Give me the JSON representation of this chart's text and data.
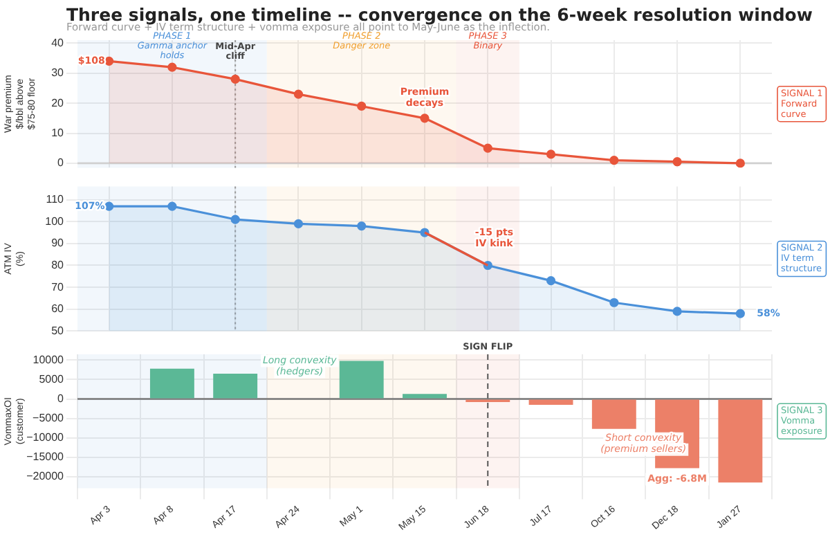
{
  "chart_data": [
    {
      "type": "area",
      "title": "Three signals, one timeline -- convergence on the 6-week resolution window",
      "subtitle": "Forward curve + IV term structure + vomma exposure all point to May-June as the inflection.",
      "ylabel": "War premium\n$/bbl above\n$75-80 floor",
      "categories": [
        "Apr 3",
        "Apr 8",
        "Apr 17",
        "Apr 24",
        "May 1",
        "May 15",
        "Jun 18",
        "Jul 17",
        "Oct 16",
        "Dec 18",
        "Jan 27"
      ],
      "series": [
        {
          "color": "#e8553a",
          "values": [
            34,
            32,
            28,
            23,
            19,
            15,
            5,
            3,
            1,
            0.5,
            0
          ]
        }
      ],
      "ylim": [
        -1.5,
        41
      ],
      "yticks": [
        0,
        10,
        20,
        30,
        40
      ],
      "grid": true,
      "tick_labels": "y",
      "marker": "circle",
      "bands": [
        {
          "axis": "x",
          "from": "Apr 3",
          "to": "Apr 17",
          "label": "PHASE 1\nGamma anchor\nholds",
          "color": "#4a90d9"
        },
        {
          "axis": "x",
          "from": "Apr 24",
          "to": "May 15",
          "label": "PHASE 2\nDanger zone",
          "color": "#f0a030"
        },
        {
          "axis": "x",
          "from": "Jun 18",
          "to": "Jun 18",
          "label": "PHASE 3\nBinary",
          "color": "#e8553a"
        }
      ],
      "ref_lines": [
        {
          "axis": "x",
          "value": "Apr 17",
          "label": "Mid-Apr\ncliff",
          "line_style": "dotted",
          "color": "#999999"
        },
        {
          "axis": "y",
          "value": 0,
          "color": "#d0d0d0"
        }
      ],
      "annotations": [
        {
          "text": "$108",
          "x": "Apr 3",
          "y": 34
        },
        "Premium\ndecays",
        "SIGNAL 1\nForward\ncurve"
      ]
    },
    {
      "type": "area",
      "ylabel": "ATM IV\n(%)",
      "categories": [
        "Apr 3",
        "Apr 8",
        "Apr 17",
        "Apr 24",
        "May 1",
        "May 15",
        "Jun 18",
        "Jul 17",
        "Oct 16",
        "Dec 18",
        "Jan 27"
      ],
      "series": [
        {
          "color": "#4a90d9",
          "values": [
            107,
            107,
            101,
            99,
            98,
            95,
            80,
            73,
            63,
            59,
            58
          ]
        },
        {
          "type": "line",
          "marker": "none",
          "color": "#e8553a",
          "values": [
            null,
            null,
            null,
            null,
            null,
            95,
            80,
            null,
            null,
            null,
            null
          ]
        }
      ],
      "ylim": [
        50,
        116
      ],
      "yticks": [
        50,
        60,
        70,
        80,
        90,
        100,
        110
      ],
      "grid": true,
      "tick_labels": "y",
      "marker": "circle",
      "bands": [
        {
          "axis": "x",
          "from": "Apr 3",
          "to": "Apr 17",
          "color": "#4a90d9"
        },
        {
          "axis": "x",
          "from": "Apr 24",
          "to": "May 15",
          "color": "#f0a030"
        },
        {
          "axis": "x",
          "from": "Jun 18",
          "to": "Jun 18",
          "color": "#e8553a"
        }
      ],
      "ref_lines": [
        {
          "axis": "x",
          "value": "Apr 17",
          "line_style": "dotted",
          "color": "#999999"
        }
      ],
      "annotations": [
        {
          "text": "107%",
          "x": "Apr 3",
          "y": 107
        },
        "-15 pts\nIV kink",
        {
          "text": "58%",
          "x": "Jan 27",
          "y": 58
        },
        "SIGNAL 2\nIV term\nstructure"
      ]
    },
    {
      "type": "bar",
      "ylabel": "VommaxOI\n(customer)",
      "categories": [
        "Apr 3",
        "Apr 8",
        "Apr 17",
        "Apr 24",
        "May 1",
        "May 15",
        "Jun 18",
        "Jul 17",
        "Oct 16",
        "Dec 18",
        "Jan 27"
      ],
      "values": [
        null,
        7800,
        6500,
        null,
        9800,
        1300,
        -800,
        -1500,
        -7700,
        -17800,
        -21500
      ],
      "colors": [
        "#5bb896",
        "#5bb896",
        "#5bb896",
        "#5bb896",
        "#5bb896",
        "#5bb896",
        "#ec8068",
        "#ec8068",
        "#ec8068",
        "#ec8068",
        "#ec8068"
      ],
      "ylim": [
        -23000,
        11500
      ],
      "yticks": [
        -20000,
        -15000,
        -10000,
        -5000,
        0,
        5000,
        10000
      ],
      "grid": true,
      "bands": [
        {
          "axis": "x",
          "from": "Apr 3",
          "to": "Apr 17",
          "color": "#4a90d9"
        },
        {
          "axis": "x",
          "from": "Apr 24",
          "to": "May 15",
          "color": "#f0a030"
        },
        {
          "axis": "x",
          "from": "Jun 18",
          "to": "Jun 18",
          "color": "#e8553a"
        }
      ],
      "ref_lines": [
        {
          "axis": "x",
          "value": "Jun 18",
          "label": "SIGN FLIP",
          "line_style": "dashed",
          "color": "#555555"
        },
        {
          "axis": "y",
          "value": 0,
          "color": "#777777"
        }
      ],
      "annotations": [
        "Long convexity\n(hedgers)",
        "Short convexity\n(premium sellers)",
        {
          "text": "Agg: -6.8M",
          "x": "Dec 18",
          "y": -17800
        },
        "SIGNAL 3\nVomma\nexposure"
      ]
    }
  ]
}
